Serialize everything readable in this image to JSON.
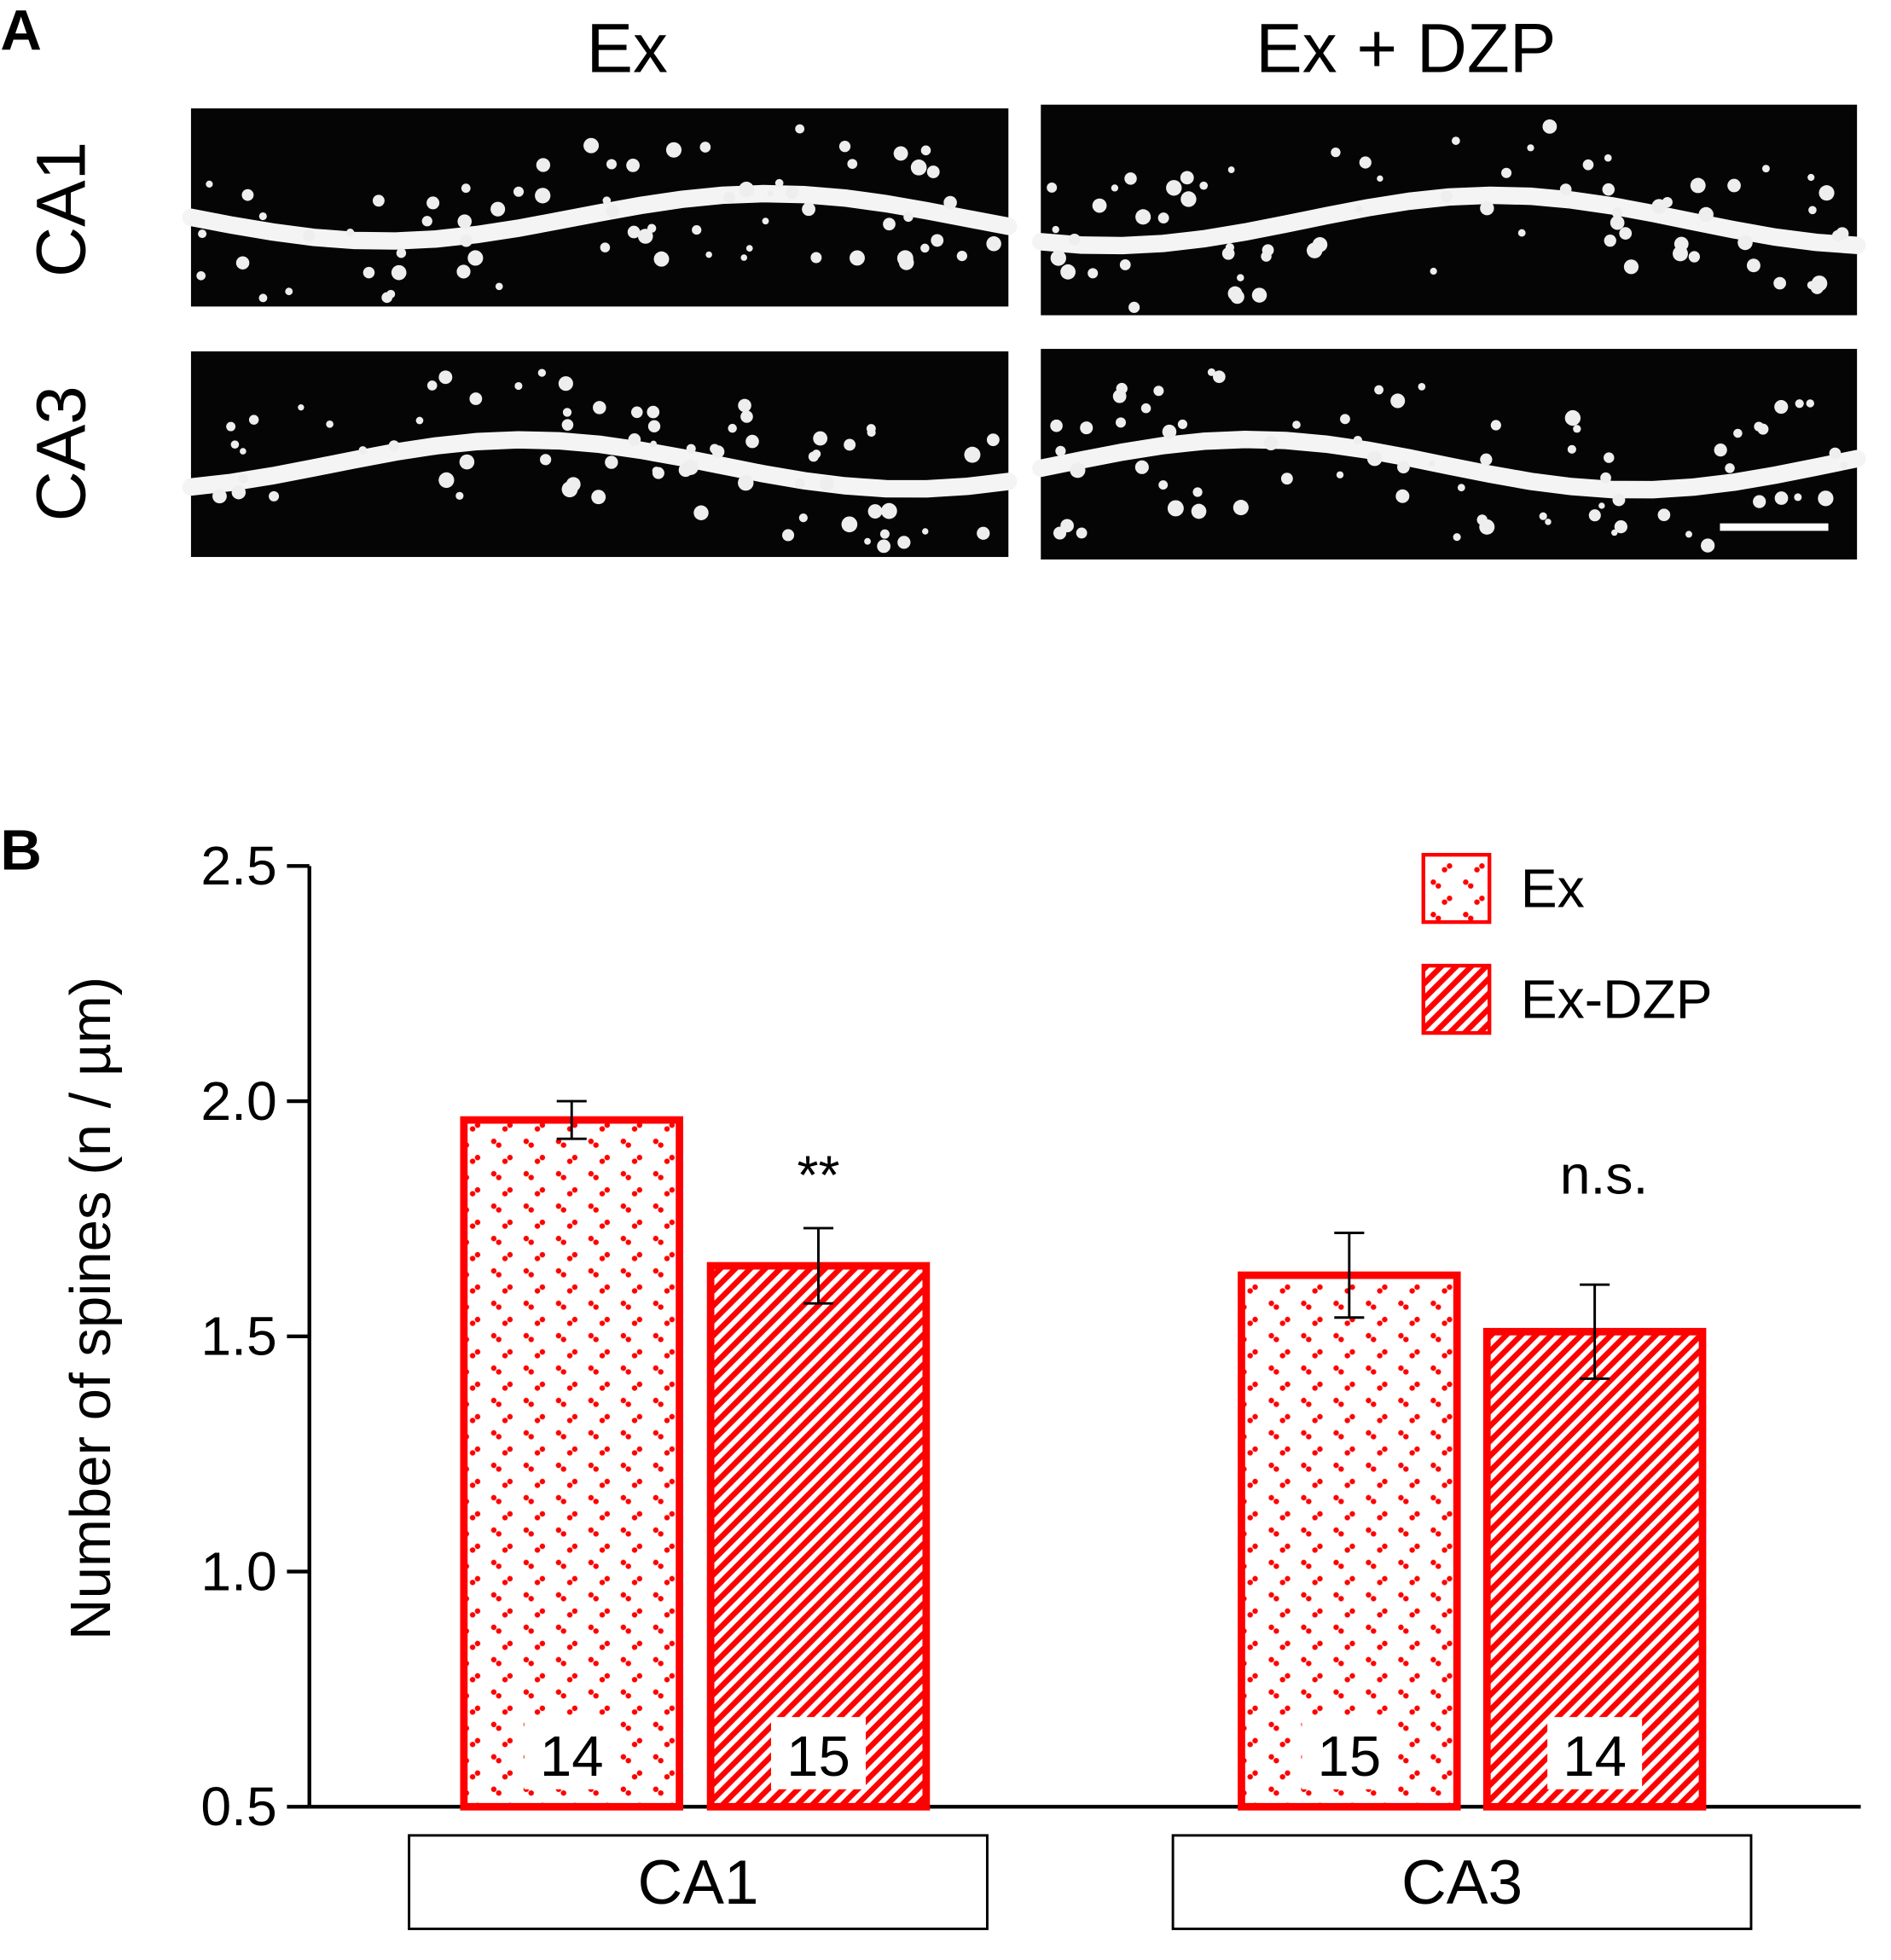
{
  "panel_a": {
    "label": "A",
    "columns": [
      "Ex",
      "Ex + DZP"
    ],
    "rows": [
      "CA1",
      "CA3"
    ]
  },
  "chart_data": {
    "type": "bar",
    "panel_label": "B",
    "y_label": "Number of spines (n / µm)",
    "categories": [
      "CA1",
      "CA3"
    ],
    "series": [
      {
        "name": "Ex",
        "color": "#ff0000",
        "pattern": "dots",
        "values": [
          1.96,
          1.63
        ],
        "errors": [
          0.04,
          0.09
        ],
        "n_labels": [
          14,
          15
        ]
      },
      {
        "name": "Ex-DZP",
        "color": "#ff0000",
        "pattern": "stripes",
        "values": [
          1.65,
          1.51
        ],
        "errors": [
          0.08,
          0.1
        ],
        "n_labels": [
          15,
          14
        ]
      }
    ],
    "annotations": [
      "**",
      "n.s."
    ],
    "ylim": [
      0.5,
      2.5
    ],
    "yticks": [
      0.5,
      {
        "value": 1,
        "label": "1.0"
      },
      1.5,
      {
        "value": 2,
        "label": "2.0"
      },
      2.5
    ],
    "legend": "top-right"
  }
}
